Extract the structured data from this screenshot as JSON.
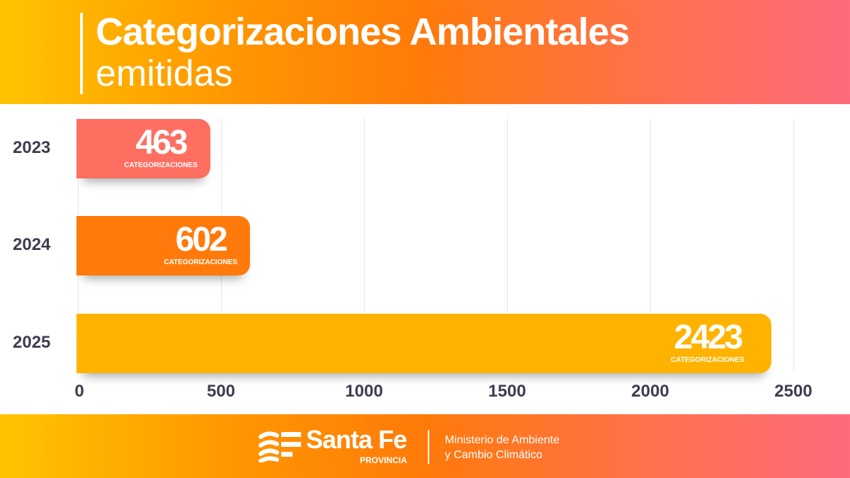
{
  "header": {
    "title_line1": "Categorizaciones Ambientales",
    "title_line2": "emitidas"
  },
  "chart_data": {
    "type": "bar",
    "orientation": "horizontal",
    "categories": [
      "2023",
      "2024",
      "2025"
    ],
    "values": [
      463,
      602,
      2423
    ],
    "data_label_suffix": "CATEGORIZACIONES",
    "colors": [
      "#ff6f61",
      "#ff7a0a",
      "#ffb300"
    ],
    "xlim": [
      0,
      2500
    ],
    "xticks": [
      "0",
      "500",
      "1000",
      "1500",
      "2000",
      "2500"
    ],
    "grid": true
  },
  "footer": {
    "brand": "Santa Fe",
    "brand_sub": "PROVINCIA",
    "ministry_line1": "Ministerio de Ambiente",
    "ministry_line2": "y Cambio Climático"
  }
}
